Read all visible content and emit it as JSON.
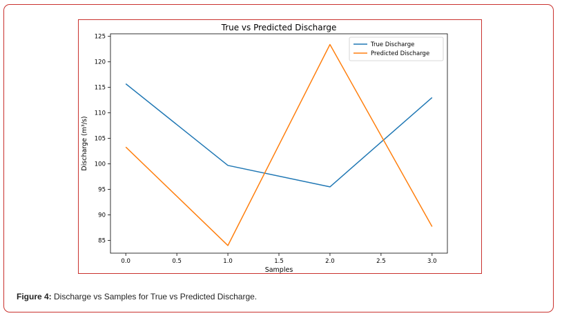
{
  "caption": {
    "label": "Figure 4:",
    "text": " Discharge vs Samples for True vs Predicted Discharge."
  },
  "chart_data": {
    "type": "line",
    "title": "True vs Predicted Discharge",
    "xlabel": "Samples",
    "ylabel": "Discharge (m³/s)",
    "xlim": [
      -0.15,
      3.15
    ],
    "ylim": [
      82.5,
      125.5
    ],
    "xticks": [
      0.0,
      0.5,
      1.0,
      1.5,
      2.0,
      2.5,
      3.0
    ],
    "xtick_labels": [
      "0.0",
      "0.5",
      "1.0",
      "1.5",
      "2.0",
      "2.5",
      "3.0"
    ],
    "yticks": [
      85,
      90,
      95,
      100,
      105,
      110,
      115,
      120,
      125
    ],
    "ytick_labels": [
      "85",
      "90",
      "95",
      "100",
      "105",
      "110",
      "115",
      "120",
      "125"
    ],
    "legend_position": "upper-right",
    "grid": false,
    "series": [
      {
        "name": "True Discharge",
        "color": "#1f77b4",
        "x": [
          0,
          1,
          2,
          3
        ],
        "y": [
          115.7,
          99.7,
          95.5,
          113.0
        ]
      },
      {
        "name": "Predicted Discharge",
        "color": "#ff7f0e",
        "x": [
          0,
          1,
          2,
          3
        ],
        "y": [
          103.3,
          84.0,
          123.4,
          87.7
        ]
      }
    ]
  }
}
